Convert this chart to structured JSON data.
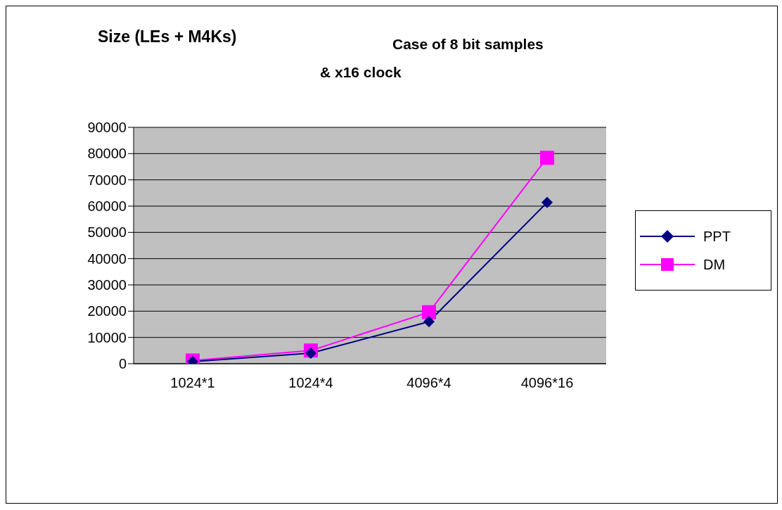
{
  "chart_data": {
    "type": "line",
    "title": "Size (LEs + M4Ks)",
    "subtitle": "Case of 8 bit samples & x16 clock",
    "categories": [
      "1024*1",
      "1024*4",
      "4096*4",
      "4096*16"
    ],
    "series": [
      {
        "name": "PPT",
        "color": "#000080",
        "marker": "diamond",
        "values": [
          800,
          4000,
          16000,
          61400
        ]
      },
      {
        "name": "DM",
        "color": "#ff00ff",
        "marker": "square",
        "values": [
          1200,
          5000,
          19600,
          78400
        ]
      }
    ],
    "ylim": [
      0,
      90000
    ],
    "yticks": [
      0,
      10000,
      20000,
      30000,
      40000,
      50000,
      60000,
      70000,
      80000,
      90000
    ],
    "grid": "y",
    "legend": "right",
    "line_style": "solid"
  }
}
